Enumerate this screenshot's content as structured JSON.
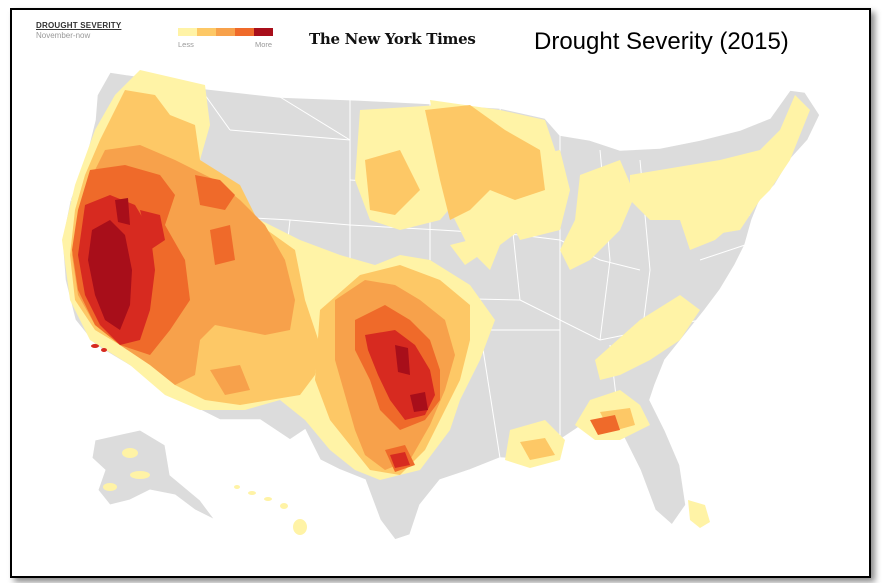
{
  "legend": {
    "title": "DROUGHT SEVERITY",
    "subtitle": "November-now",
    "less_label": "Less",
    "more_label": "More",
    "colors": [
      "#fff3a6",
      "#fdc866",
      "#f7a14b",
      "#ef6a2a",
      "#d72a20",
      "#a80e1a"
    ]
  },
  "source": "The New York Times",
  "title": "Drought Severity (2015)",
  "colors": {
    "land": "#dcdcdc",
    "border": "#ffffff",
    "level1": "#fff3a6",
    "level2": "#fdc866",
    "level3": "#f7a14b",
    "level4": "#ef6a2a",
    "level5": "#d72a20",
    "level6": "#a80e1a"
  }
}
